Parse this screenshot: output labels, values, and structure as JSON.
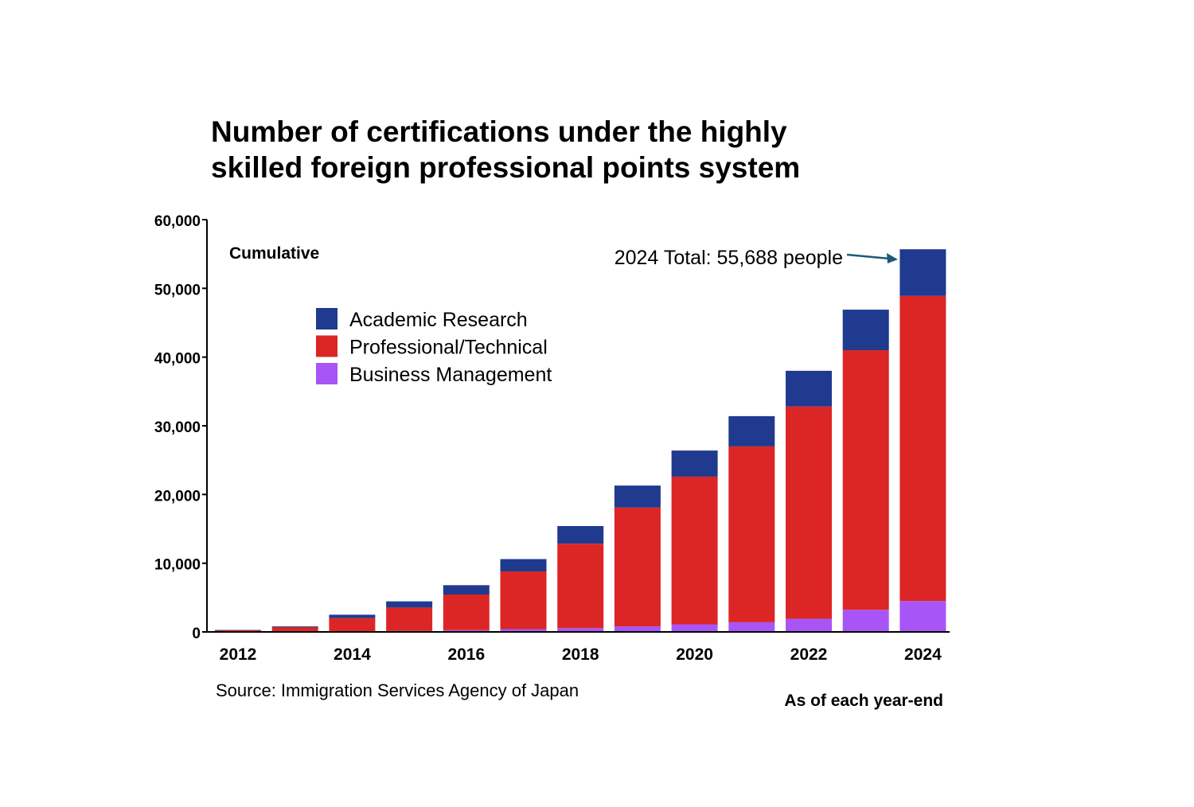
{
  "title_lines": [
    "Number of certifications under the highly",
    "skilled foreign professional points system"
  ],
  "annotation_cumulative": "Cumulative",
  "annotation_total": "2024 Total: 55,688 people",
  "source": "Source: Immigration Services Agency of Japan",
  "footnote": "As of each year-end",
  "colors": {
    "academic": "#1f3a8f",
    "professional": "#dc2626",
    "business": "#a855f7",
    "arrow": "#1e5a78"
  },
  "chart_data": {
    "type": "bar",
    "stacked": true,
    "categories": [
      "2012",
      "2013",
      "2014",
      "2015",
      "2016",
      "2017",
      "2018",
      "2019",
      "2020",
      "2021",
      "2022",
      "2023",
      "2024"
    ],
    "x_tick_labels": [
      "2012",
      "",
      "2014",
      "",
      "2016",
      "",
      "2018",
      "",
      "2020",
      "",
      "2022",
      "",
      "2024"
    ],
    "series": [
      {
        "name": "Business Management",
        "color_key": "business",
        "values": [
          20,
          50,
          100,
          150,
          250,
          400,
          550,
          800,
          1100,
          1400,
          1900,
          3200,
          4500
        ]
      },
      {
        "name": "Professional/Technical",
        "color_key": "professional",
        "values": [
          230,
          650,
          1900,
          3400,
          5200,
          8400,
          12300,
          17300,
          21500,
          25600,
          30900,
          37800,
          44400
        ]
      },
      {
        "name": "Academic Research",
        "color_key": "academic",
        "values": [
          50,
          100,
          500,
          900,
          1350,
          1800,
          2550,
          3200,
          3800,
          4400,
          5200,
          5900,
          6788
        ]
      }
    ],
    "legend": [
      "Academic Research",
      "Professional/Technical",
      "Business Management"
    ],
    "legend_placement": "upper-left",
    "y_ticks": [
      "0",
      "10,000",
      "20,000",
      "30,000",
      "40,000",
      "50,000",
      "60,000"
    ],
    "ylim": [
      0,
      60000
    ],
    "grid": false
  }
}
